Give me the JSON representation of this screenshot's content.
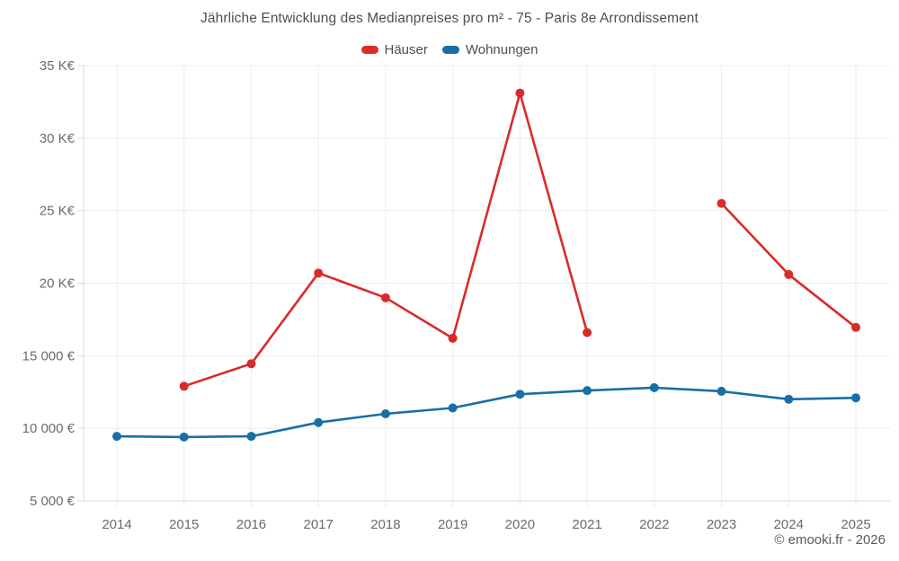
{
  "title": "Jährliche Entwicklung des Medianpreises pro m² - 75 - Paris 8e Arrondissement",
  "legend": [
    {
      "label": "Häuser",
      "color": "#d92b2b"
    },
    {
      "label": "Wohnungen",
      "color": "#186fa5"
    }
  ],
  "footer": "© emooki.fr - 2026",
  "chart_data": {
    "type": "line",
    "title": "Jährliche Entwicklung des Medianpreises pro m² - 75 - Paris 8e Arrondissement",
    "xlabel": "",
    "ylabel": "",
    "x": [
      2014,
      2015,
      2016,
      2017,
      2018,
      2019,
      2020,
      2021,
      2022,
      2023,
      2024,
      2025
    ],
    "x_tick_labels": [
      "2014",
      "2015",
      "2016",
      "2017",
      "2018",
      "2019",
      "2020",
      "2021",
      "2022",
      "2023",
      "2024",
      "2025"
    ],
    "ylim": [
      5000,
      35000
    ],
    "y_ticks": [
      {
        "value": 35000,
        "label": "35 K€"
      },
      {
        "value": 30000,
        "label": "30 K€"
      },
      {
        "value": 25000,
        "label": "25 K€"
      },
      {
        "value": 20000,
        "label": "20 K€"
      },
      {
        "value": 15000,
        "label": "15 000 €"
      },
      {
        "value": 10000,
        "label": "10 000 €"
      },
      {
        "value": 5000,
        "label": "5 000 €"
      }
    ],
    "grid": true,
    "legend_position": "top",
    "series": [
      {
        "name": "Häuser",
        "color": "#d92b2b",
        "values": [
          null,
          12900,
          14450,
          20700,
          19000,
          16200,
          33100,
          16600,
          null,
          25500,
          20600,
          16950
        ]
      },
      {
        "name": "Wohnungen",
        "color": "#186fa5",
        "values": [
          9450,
          9400,
          9450,
          10400,
          11000,
          11400,
          12350,
          12600,
          12800,
          12550,
          12000,
          12100
        ]
      }
    ]
  }
}
